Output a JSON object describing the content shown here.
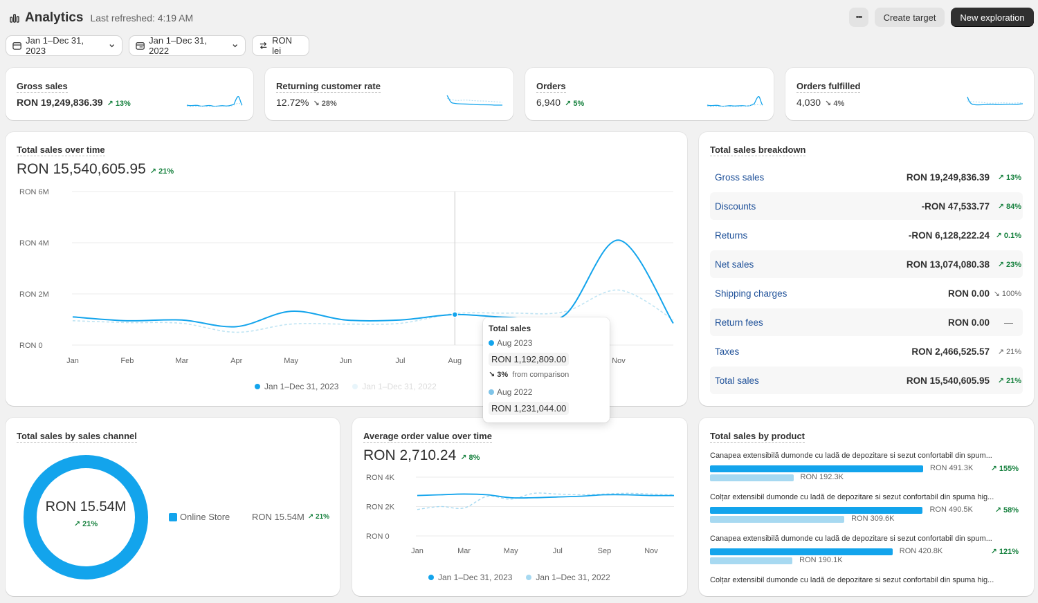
{
  "header": {
    "title": "Analytics",
    "last_refreshed": "Last refreshed: 4:19 AM",
    "more_label": "•••",
    "create_target": "Create target",
    "new_exploration": "New exploration"
  },
  "filters": {
    "date_range": "Jan 1–Dec 31, 2023",
    "comparison_range": "Jan 1–Dec 31, 2022",
    "currency": "RON lei"
  },
  "kpis": [
    {
      "title": "Gross sales",
      "value": "RON 19,249,836.39",
      "change": "13%",
      "direction": "up"
    },
    {
      "title": "Returning customer rate",
      "value": "12.72%",
      "change": "28%",
      "direction": "down"
    },
    {
      "title": "Orders",
      "value": "6,940",
      "change": "5%",
      "direction": "up"
    },
    {
      "title": "Orders fulfilled",
      "value": "4,030",
      "change": "4%",
      "direction": "down"
    }
  ],
  "sales_over_time": {
    "title": "Total sales over time",
    "value": "RON 15,540,605.95",
    "change": "21%",
    "legend_current": "Jan 1–Dec 31, 2023",
    "legend_previous": "Jan 1–Dec 31, 2022",
    "tooltip": {
      "title": "Total sales",
      "current_label": "Aug 2023",
      "current_value": "RON 1,192,809.00",
      "change": "3%",
      "change_text": "from comparison",
      "previous_label": "Aug 2022",
      "previous_value": "RON 1,231,044.00"
    }
  },
  "breakdown": {
    "title": "Total sales breakdown",
    "rows": [
      {
        "label": "Gross sales",
        "value": "RON 19,249,836.39",
        "change": "13%",
        "direction": "up"
      },
      {
        "label": "Discounts",
        "value": "-RON 47,533.77",
        "change": "84%",
        "direction": "up"
      },
      {
        "label": "Returns",
        "value": "-RON 6,128,222.24",
        "change": "0.1%",
        "direction": "up"
      },
      {
        "label": "Net sales",
        "value": "RON 13,074,080.38",
        "change": "23%",
        "direction": "up"
      },
      {
        "label": "Shipping charges",
        "value": "RON 0.00",
        "change": "100%",
        "direction": "down"
      },
      {
        "label": "Return fees",
        "value": "RON 0.00",
        "change": "—",
        "direction": "none"
      },
      {
        "label": "Taxes",
        "value": "RON 2,466,525.57",
        "change": "21%",
        "direction": "neutral-up"
      },
      {
        "label": "Total sales",
        "value": "RON 15,540,605.95",
        "change": "21%",
        "direction": "up"
      }
    ]
  },
  "by_channel": {
    "title": "Total sales by sales channel",
    "center_value": "RON 15.54M",
    "center_change": "21%",
    "channel_name": "Online Store",
    "channel_value": "RON 15.54M",
    "channel_change": "21%"
  },
  "aov": {
    "title": "Average order value over time",
    "value": "RON 2,710.24",
    "change": "8%",
    "legend_current": "Jan 1–Dec 31, 2023",
    "legend_previous": "Jan 1–Dec 31, 2022"
  },
  "by_product": {
    "title": "Total sales by product",
    "items": [
      {
        "name": "Canapea extensibilă dumonde cu ladă de depozitare si sezut confortabil din spum...",
        "current": "RON 491.3K",
        "previous": "RON 192.3K",
        "change": "155%",
        "current_value": 491.3,
        "previous_value": 192.3
      },
      {
        "name": "Colțar extensibil dumonde cu ladă de depozitare si sezut confortabil din spuma hig...",
        "current": "RON 490.5K",
        "previous": "RON 309.6K",
        "change": "58%",
        "current_value": 490.5,
        "previous_value": 309.6
      },
      {
        "name": "Canapea extensibilă dumonde cu ladă de depozitare si sezut confortabil din spum...",
        "current": "RON 420.8K",
        "previous": "RON 190.1K",
        "change": "121%",
        "current_value": 420.8,
        "previous_value": 190.1
      },
      {
        "name": "Colțar extensibil dumonde cu ladă de depozitare si sezut confortabil din spuma hig...",
        "current": "",
        "previous": "",
        "change": "",
        "current_value": 0,
        "previous_value": 0
      }
    ]
  },
  "colors": {
    "accent": "#13a4ec",
    "comparison": "#a7d9f1",
    "positive": "#15803d",
    "link": "#1f5199"
  },
  "chart_data": [
    {
      "type": "line",
      "title": "Total sales over time",
      "ylabel": "",
      "xlabel": "",
      "x": [
        "Jan",
        "Feb",
        "Mar",
        "Apr",
        "May",
        "Jun",
        "Jul",
        "Aug",
        "Sep",
        "Oct",
        "Nov",
        "Dec"
      ],
      "x_tick_labels": [
        "Jan",
        "Feb",
        "Mar",
        "Apr",
        "May",
        "Jun",
        "Jul",
        "Aug",
        "Sep",
        "Oct",
        "Nov"
      ],
      "y_tick_labels": [
        "RON 6M",
        "RON 4M",
        "RON 2M",
        "RON 0"
      ],
      "ylim": [
        0,
        6000000
      ],
      "grid": true,
      "series": [
        {
          "name": "Jan 1–Dec 31, 2023",
          "values": [
            1100000,
            950000,
            980000,
            720000,
            1320000,
            980000,
            980000,
            1192809,
            1080000,
            1150000,
            4100000,
            850000
          ]
        },
        {
          "name": "Jan 1–Dec 31, 2022",
          "values": [
            950000,
            880000,
            850000,
            500000,
            820000,
            820000,
            850000,
            1231044,
            1250000,
            1300000,
            2150000,
            1000000
          ]
        }
      ]
    },
    {
      "type": "line",
      "title": "Average order value over time",
      "x": [
        "Jan",
        "Feb",
        "Mar",
        "Apr",
        "May",
        "Jun",
        "Jul",
        "Aug",
        "Sep",
        "Oct",
        "Nov",
        "Dec"
      ],
      "x_tick_labels": [
        "Jan",
        "Mar",
        "May",
        "Jul",
        "Sep",
        "Nov"
      ],
      "y_tick_labels": [
        "RON 4K",
        "RON 2K",
        "RON 0"
      ],
      "ylim": [
        0,
        4000
      ],
      "grid": true,
      "series": [
        {
          "name": "Jan 1–Dec 31, 2023",
          "values": [
            2750,
            2800,
            2850,
            2800,
            2600,
            2600,
            2650,
            2700,
            2800,
            2800,
            2750,
            2750
          ]
        },
        {
          "name": "Jan 1–Dec 31, 2022",
          "values": [
            1800,
            2000,
            1900,
            2700,
            2500,
            2900,
            2850,
            2800,
            2850,
            2900,
            2850,
            2800
          ]
        }
      ]
    },
    {
      "type": "pie",
      "title": "Total sales by sales channel",
      "categories": [
        "Online Store"
      ],
      "values": [
        15540000
      ]
    },
    {
      "type": "bar",
      "title": "Total sales by product",
      "categories": [
        "Canapea extensibilă dumonde cu ladă de depozitare si sezut confortabil din spum...",
        "Colțar extensibil dumonde cu ladă de depozitare si sezut confortabil din spuma hig...",
        "Canapea extensibilă dumonde cu ladă de depozitare si sezut confortabil din spum..."
      ],
      "series": [
        {
          "name": "Jan 1–Dec 31, 2023",
          "values": [
            491300,
            490500,
            420800
          ]
        },
        {
          "name": "Jan 1–Dec 31, 2022",
          "values": [
            192300,
            309600,
            190100
          ]
        }
      ]
    }
  ]
}
